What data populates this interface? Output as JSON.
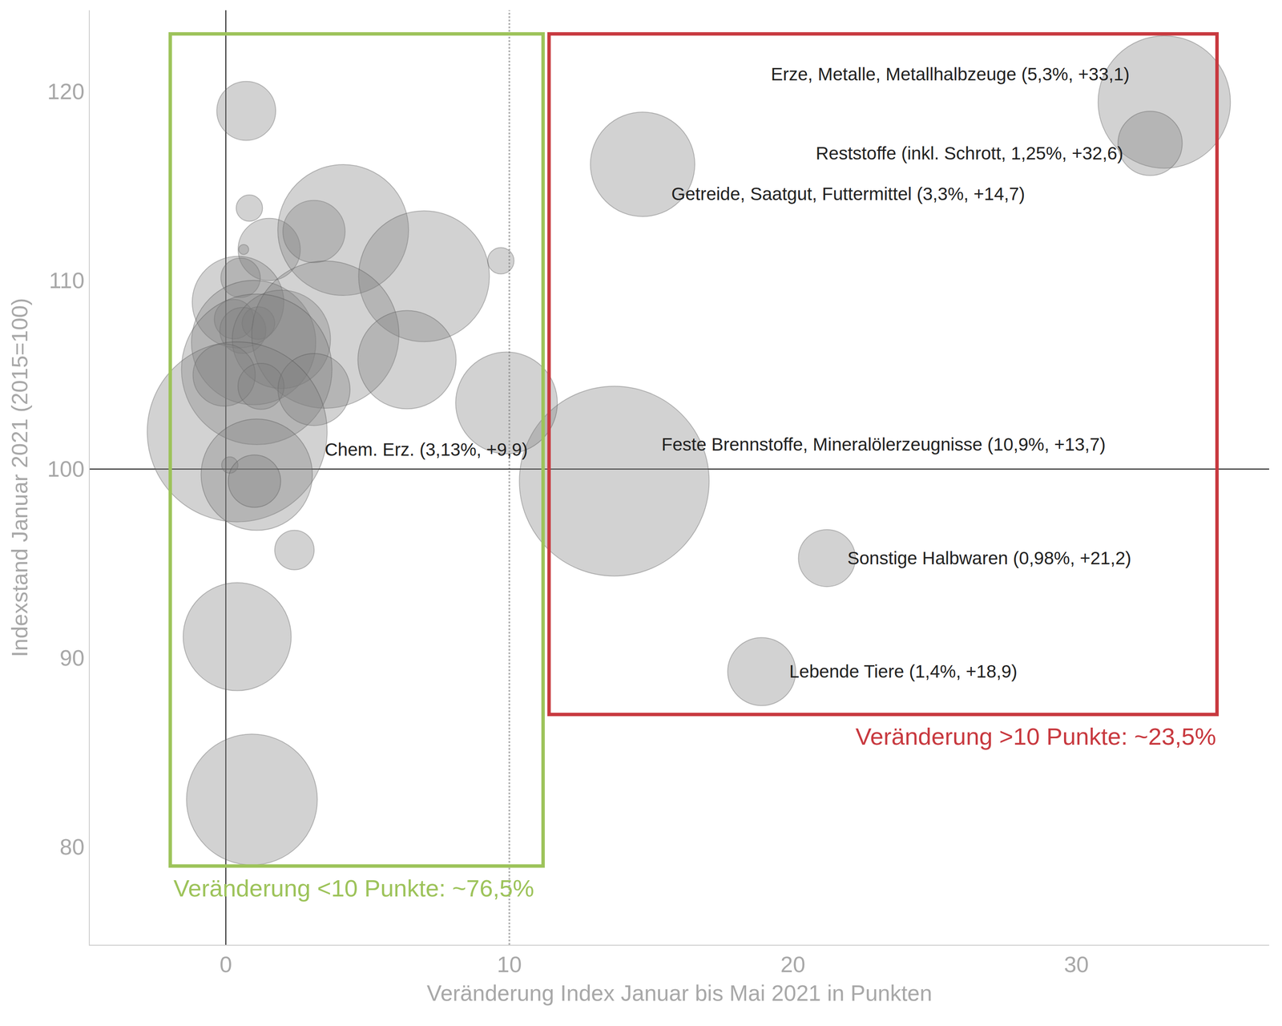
{
  "chart_data": {
    "type": "scatter",
    "marker": "bubble",
    "color": "#808080",
    "x_label": "Veränderung Index Januar bis Mai 2021 in Punkten",
    "y_label": "Indexstand Januar 2021 (2015=100)",
    "xlim": [
      -4.8,
      36.8
    ],
    "ylim": [
      74.8,
      124.3
    ],
    "xticks": [
      0,
      10,
      20,
      30
    ],
    "yticks": [
      80,
      90,
      100,
      110,
      120
    ],
    "grid": false,
    "x": [
      33.1,
      32.6,
      14.7,
      13.7,
      21.2,
      18.9,
      9.9,
      0.72,
      0.83,
      0.63,
      1.53,
      3.11,
      4.14,
      6.99,
      9.7,
      0.52,
      0.43,
      0.29,
      0.6,
      1.15,
      0.98,
      1.96,
      3.51,
      6.39,
      1.09,
      -0.06,
      1.24,
      3.11,
      0.4,
      0.14,
      1.09,
      1.01,
      2.42,
      0.4,
      0.92
    ],
    "values": [
      119.44,
      117.25,
      116.14,
      99.36,
      95.28,
      89.27,
      103.5,
      118.97,
      113.82,
      111.63,
      111.63,
      112.58,
      112.66,
      110.21,
      111.03,
      110.13,
      108.84,
      107.94,
      107.34,
      107.73,
      106.7,
      106.87,
      107.12,
      105.79,
      105.28,
      104.98,
      104.38,
      104.21,
      101.97,
      100.21,
      99.7,
      99.36,
      95.71,
      91.12,
      82.49
    ],
    "weights": [
      5.3,
      1.25,
      3.3,
      10.9,
      0.98,
      1.4,
      3.13,
      1.05,
      0.21,
      0.03,
      1.17,
      1.17,
      5.18,
      5.18,
      0.21,
      0.47,
      2.54,
      0.47,
      0.64,
      0.32,
      4.68,
      2.92,
      6.56,
      2.92,
      6.86,
      1.17,
      0.64,
      1.57,
      9.8,
      0.08,
      3.75,
      0.83,
      0.47,
      3.53,
      5.18
    ],
    "point_labels": [
      "Erze, Metalle, Metallhalbzeuge (5,3%, +33,1)",
      "Reststoffe (inkl. Schrott, 1,25%, +32,6)",
      "Getreide, Saatgut, Futtermittel (3,3%, +14,7)",
      "Feste Brennstoffe, Mineralölerzeugnisse (10,9%, +13,7)",
      "Sonstige Halbwaren (0,98%, +21,2)",
      "Lebende Tiere (1,4%, +18,9)",
      "Chem. Erz. (3,13%, +9,9)",
      null,
      null,
      null,
      null,
      null,
      null,
      null,
      null,
      null,
      null,
      null,
      null,
      null,
      null,
      null,
      null,
      null,
      null,
      null,
      null,
      null,
      null,
      null,
      null,
      null,
      null,
      null,
      null
    ],
    "regions": [
      {
        "label": "Veränderung <10 Punkte: ~76,5%",
        "color": "#9dc35a",
        "xlim": [
          -1.96,
          11.19
        ],
        "ylim": [
          78.97,
          123.05
        ]
      },
      {
        "label": "Veränderung >10 Punkte: ~23,5%",
        "color": "#c8393f",
        "xlim": [
          11.4,
          34.96
        ],
        "ylim": [
          87.0,
          123.05
        ]
      }
    ],
    "lines": [
      {
        "axis": "x",
        "value": 0,
        "line_style": "solid",
        "color": "#000000"
      },
      {
        "axis": "x",
        "value": 10,
        "line_style": "dotted",
        "color": "#b0b0b0"
      },
      {
        "axis": "y",
        "value": 100,
        "line_style": "solid",
        "color": "#000000"
      }
    ]
  }
}
